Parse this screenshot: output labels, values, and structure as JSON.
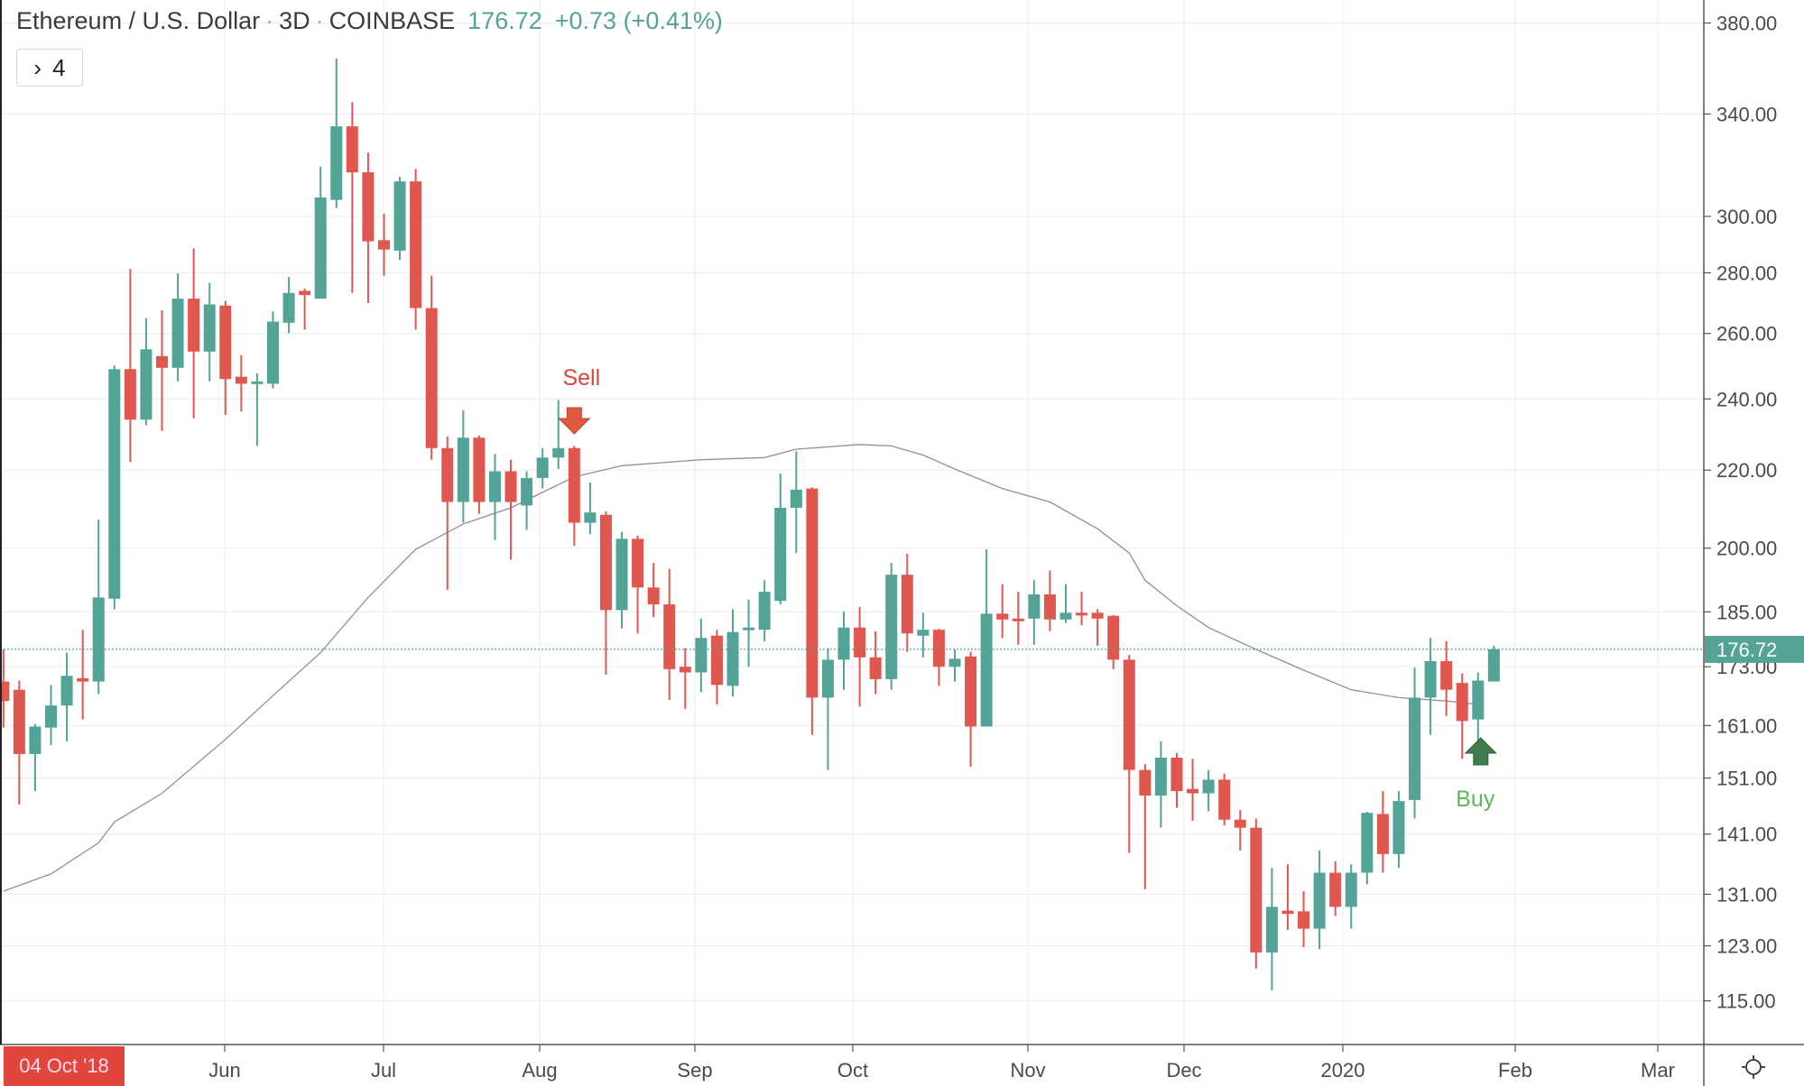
{
  "header": {
    "symbol": "Ethereum / U.S. Dollar",
    "interval": "3D",
    "exchange": "COINBASE",
    "separator": "·",
    "last_price": "176.72",
    "change": "+0.73 (+0.41%)"
  },
  "indicators_button": {
    "chevron": "›",
    "count": "4"
  },
  "crosshair_date": "04 Oct '18",
  "settings_icon": "sun-gear-icon",
  "colors": {
    "up": "#53a497",
    "down": "#e0574f",
    "ma": "#8e8ea8",
    "sell": "#d9473a",
    "buy": "#5db85a",
    "buy_arrow": "#3f7d4e"
  },
  "chart_data": {
    "type": "candlestick",
    "title": "Ethereum / U.S. Dollar · 3D · COINBASE",
    "y_scale": "log",
    "ylim": [
      110,
      390
    ],
    "grid": true,
    "y_ticks": [
      "380.00",
      "340.00",
      "300.00",
      "280.00",
      "260.00",
      "240.00",
      "220.00",
      "200.00",
      "185.00",
      "173.00",
      "161.00",
      "151.00",
      "141.00",
      "131.00",
      "123.00",
      "115.00"
    ],
    "x_ticks": [
      "Jun",
      "Jul",
      "Aug",
      "Sep",
      "Oct",
      "Nov",
      "Dec",
      "2020",
      "Feb",
      "Mar"
    ],
    "last_price": 176.72,
    "candles": [
      [
        169.9,
        176.7,
        160.6,
        165.9
      ],
      [
        168.2,
        170.1,
        146.2,
        155.5
      ],
      [
        155.5,
        161.3,
        148.6,
        160.8
      ],
      [
        160.6,
        169.2,
        157.2,
        165.0
      ],
      [
        165.0,
        176.0,
        157.9,
        171.1
      ],
      [
        170.6,
        181.0,
        162.2,
        169.9
      ],
      [
        169.9,
        207.1,
        167.3,
        188.3
      ],
      [
        188.0,
        250.0,
        185.6,
        248.9
      ],
      [
        248.9,
        281.3,
        222.2,
        234.0
      ],
      [
        234.0,
        264.9,
        232.4,
        255.0
      ],
      [
        252.9,
        267.5,
        230.8,
        249.3
      ],
      [
        249.3,
        279.8,
        245.2,
        271.3
      ],
      [
        271.3,
        288.5,
        234.4,
        254.3
      ],
      [
        254.3,
        276.6,
        245.2,
        269.4
      ],
      [
        269.0,
        270.5,
        235.4,
        245.9
      ],
      [
        246.6,
        253.2,
        236.3,
        244.5
      ],
      [
        244.5,
        247.6,
        226.6,
        245.2
      ],
      [
        244.5,
        267.1,
        243.1,
        263.8
      ],
      [
        263.4,
        278.6,
        260.1,
        273.2
      ],
      [
        273.9,
        274.7,
        261.2,
        272.5
      ],
      [
        271.3,
        318.8,
        271.3,
        307.0
      ],
      [
        306.1,
        363.8,
        303.1,
        334.9
      ],
      [
        334.9,
        344.9,
        273.2,
        316.6
      ],
      [
        316.6,
        324.3,
        269.8,
        291.0
      ],
      [
        291.4,
        301.0,
        279.0,
        288.1
      ],
      [
        287.7,
        314.9,
        284.5,
        313.1
      ],
      [
        313.1,
        317.9,
        261.2,
        268.2
      ],
      [
        268.2,
        279.0,
        222.8,
        226.0
      ],
      [
        226.0,
        229.2,
        190.1,
        211.6
      ],
      [
        211.6,
        236.7,
        206.3,
        228.9
      ],
      [
        228.9,
        229.5,
        208.6,
        211.6
      ],
      [
        211.6,
        224.4,
        202.0,
        219.7
      ],
      [
        219.7,
        222.8,
        197.2,
        211.6
      ],
      [
        210.7,
        219.7,
        204.5,
        217.9
      ],
      [
        217.9,
        226.0,
        215.1,
        223.4
      ],
      [
        223.4,
        239.7,
        220.3,
        226.0
      ],
      [
        226.0,
        226.6,
        200.6,
        206.3
      ],
      [
        206.3,
        216.7,
        203.4,
        208.9
      ],
      [
        208.3,
        209.2,
        171.3,
        185.4
      ],
      [
        185.4,
        204.0,
        181.3,
        202.3
      ],
      [
        202.3,
        203.1,
        180.2,
        190.6
      ],
      [
        190.6,
        196.4,
        183.8,
        186.7
      ],
      [
        186.7,
        195.0,
        166.1,
        172.5
      ],
      [
        173.0,
        177.0,
        164.3,
        171.8
      ],
      [
        171.8,
        183.5,
        167.7,
        179.2
      ],
      [
        179.7,
        181.0,
        165.2,
        169.2
      ],
      [
        169.0,
        185.6,
        166.8,
        180.5
      ],
      [
        181.0,
        187.8,
        173.0,
        181.5
      ],
      [
        181.0,
        192.3,
        178.5,
        189.6
      ],
      [
        187.5,
        219.1,
        186.7,
        210.1
      ],
      [
        210.1,
        225.1,
        198.8,
        214.8
      ],
      [
        215.1,
        215.4,
        159.2,
        166.6
      ],
      [
        166.6,
        177.0,
        152.5,
        174.5
      ],
      [
        174.5,
        185.1,
        168.2,
        181.5
      ],
      [
        181.5,
        186.1,
        164.8,
        175.0
      ],
      [
        175.0,
        180.7,
        167.3,
        170.4
      ],
      [
        170.4,
        196.4,
        168.2,
        193.6
      ],
      [
        193.6,
        198.6,
        176.2,
        180.2
      ],
      [
        179.7,
        184.8,
        175.0,
        181.0
      ],
      [
        181.0,
        181.2,
        169.0,
        173.0
      ],
      [
        173.0,
        176.7,
        169.9,
        174.7
      ],
      [
        175.2,
        176.2,
        153.1,
        160.8
      ],
      [
        160.8,
        199.7,
        160.8,
        184.6
      ],
      [
        184.6,
        191.4,
        179.2,
        183.3
      ],
      [
        183.5,
        189.6,
        177.7,
        183.3
      ],
      [
        183.5,
        192.3,
        177.7,
        189.0
      ],
      [
        189.0,
        194.6,
        180.7,
        183.3
      ],
      [
        183.3,
        191.4,
        182.5,
        184.8
      ],
      [
        184.8,
        189.6,
        182.0,
        184.6
      ],
      [
        184.8,
        185.6,
        177.5,
        183.5
      ],
      [
        184.1,
        184.3,
        172.5,
        174.5
      ],
      [
        174.5,
        175.5,
        137.8,
        152.5
      ],
      [
        152.5,
        153.6,
        131.8,
        147.8
      ],
      [
        147.8,
        157.9,
        142.1,
        154.8
      ],
      [
        154.8,
        155.7,
        145.6,
        148.6
      ],
      [
        149.0,
        154.6,
        143.3,
        148.2
      ],
      [
        148.2,
        152.5,
        145.0,
        150.7
      ],
      [
        150.7,
        151.8,
        142.5,
        143.5
      ],
      [
        143.5,
        145.2,
        138.2,
        142.1
      ],
      [
        142.1,
        143.7,
        119.6,
        122.0
      ],
      [
        122.0,
        135.3,
        116.5,
        129.0
      ],
      [
        128.4,
        135.9,
        125.4,
        127.9
      ],
      [
        128.3,
        131.5,
        122.8,
        125.6
      ],
      [
        125.6,
        138.2,
        122.5,
        134.5
      ],
      [
        134.5,
        136.4,
        127.6,
        129.0
      ],
      [
        129.0,
        135.9,
        125.6,
        134.5
      ],
      [
        134.5,
        144.9,
        132.6,
        144.7
      ],
      [
        144.5,
        148.6,
        134.5,
        137.6
      ],
      [
        137.6,
        148.6,
        135.3,
        146.8
      ],
      [
        147.0,
        172.8,
        143.7,
        166.6
      ],
      [
        166.6,
        179.2,
        159.2,
        174.2
      ],
      [
        174.2,
        178.5,
        162.9,
        168.2
      ],
      [
        169.6,
        171.6,
        154.6,
        161.9
      ],
      [
        162.2,
        171.8,
        156.4,
        170.1
      ],
      [
        169.9,
        177.5,
        169.9,
        176.72
      ]
    ],
    "candle_fields": [
      "open",
      "high",
      "low",
      "close"
    ],
    "moving_average": [
      [
        0,
        131.5
      ],
      [
        3,
        134.3
      ],
      [
        6,
        139.5
      ],
      [
        7,
        143.1
      ],
      [
        10,
        148.2
      ],
      [
        14,
        158.3
      ],
      [
        17,
        167.0
      ],
      [
        20,
        176.0
      ],
      [
        23,
        188.3
      ],
      [
        26,
        199.7
      ],
      [
        29,
        206.0
      ],
      [
        32,
        210.1
      ],
      [
        36,
        218.2
      ],
      [
        39,
        221.2
      ],
      [
        44,
        222.8
      ],
      [
        48,
        223.4
      ],
      [
        50,
        225.7
      ],
      [
        54,
        227.0
      ],
      [
        56,
        226.6
      ],
      [
        58,
        224.1
      ],
      [
        60,
        220.3
      ],
      [
        63,
        215.1
      ],
      [
        66,
        211.6
      ],
      [
        69,
        204.8
      ],
      [
        71,
        198.8
      ],
      [
        72,
        192.3
      ],
      [
        74,
        186.4
      ],
      [
        76,
        181.5
      ],
      [
        79,
        176.7
      ],
      [
        82,
        172.3
      ],
      [
        85,
        168.2
      ],
      [
        88,
        166.6
      ],
      [
        91,
        165.9
      ],
      [
        93,
        165.2
      ]
    ],
    "annotations": [
      {
        "text": "Sell",
        "candle": 36,
        "type": "arrow-down",
        "price": 232
      },
      {
        "text": "Buy",
        "candle": 93,
        "type": "arrow-up",
        "price": 154
      }
    ]
  }
}
